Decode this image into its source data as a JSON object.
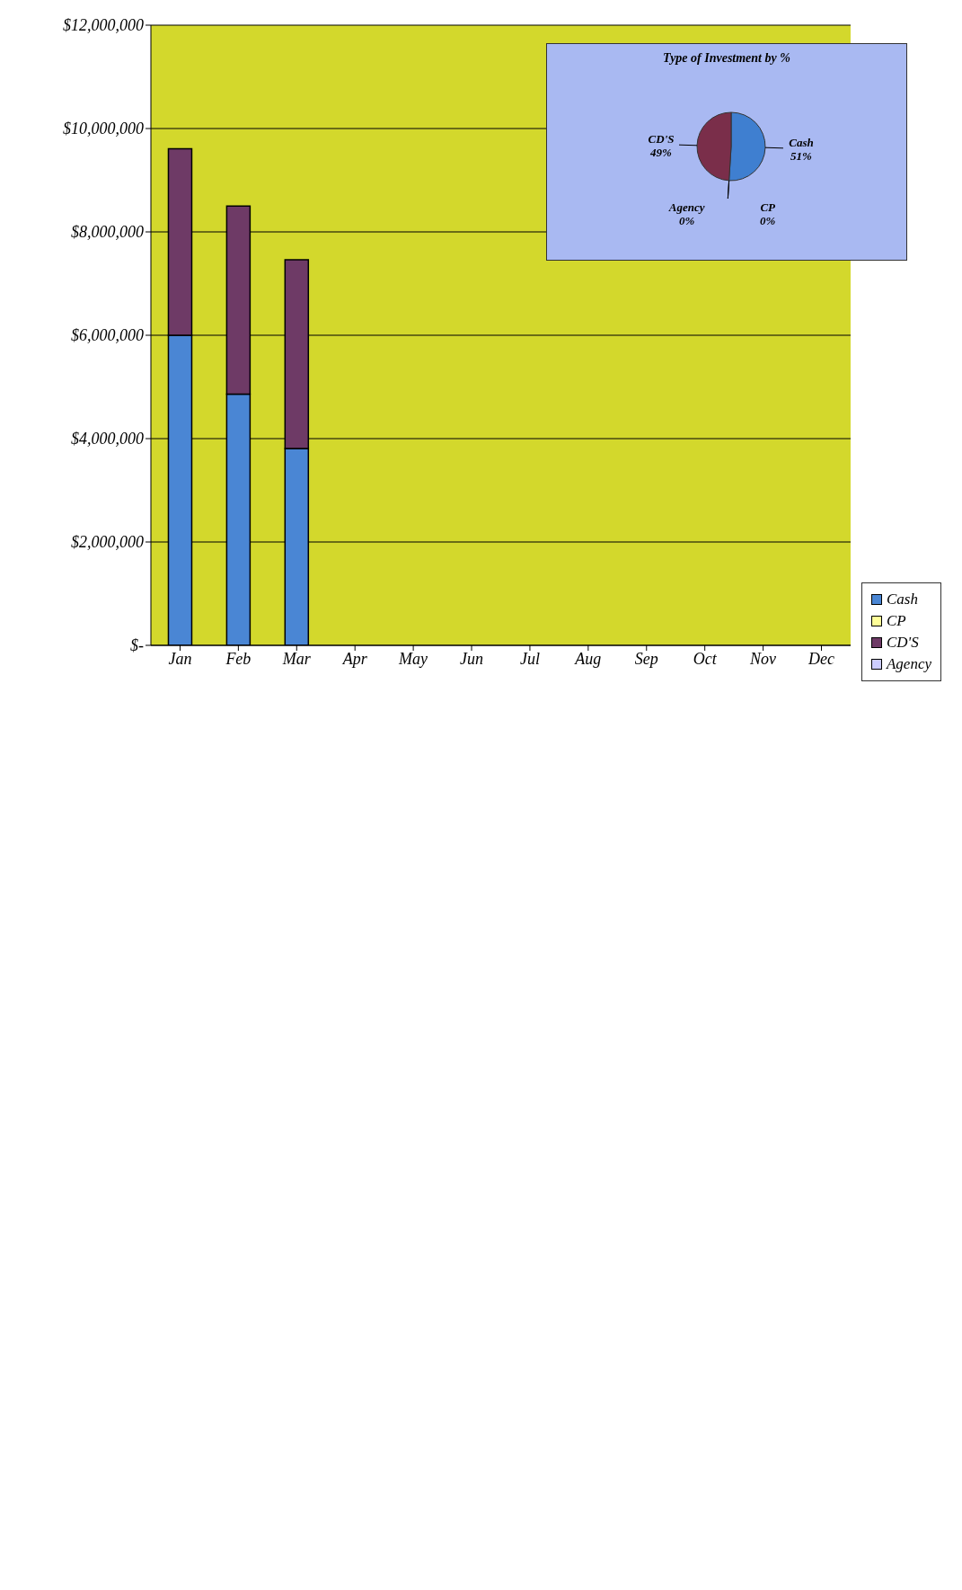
{
  "chart_data": [
    {
      "type": "bar",
      "stacked": true,
      "categories": [
        "Jan",
        "Feb",
        "Mar",
        "Apr",
        "May",
        "Jun",
        "Jul",
        "Aug",
        "Sep",
        "Oct",
        "Nov",
        "Dec"
      ],
      "series": [
        {
          "name": "Cash",
          "color": "#4a86d4",
          "values": [
            6000000,
            4860000,
            3810000,
            null,
            null,
            null,
            null,
            null,
            null,
            null,
            null,
            null
          ]
        },
        {
          "name": "CD'S",
          "color": "#6e3a66",
          "values": [
            3610000,
            3640000,
            3650000,
            null,
            null,
            null,
            null,
            null,
            null,
            null,
            null,
            null
          ]
        },
        {
          "name": "CP",
          "color": "#ffff99",
          "values": [
            0,
            0,
            0,
            null,
            null,
            null,
            null,
            null,
            null,
            null,
            null,
            null
          ]
        },
        {
          "name": "Agency",
          "color": "#ccccff",
          "values": [
            0,
            0,
            0,
            null,
            null,
            null,
            null,
            null,
            null,
            null,
            null,
            null
          ]
        }
      ],
      "ylim": [
        0,
        12000000
      ],
      "yticks": [
        {
          "value": 0,
          "label": "$-"
        },
        {
          "value": 2000000,
          "label": "$2,000,000"
        },
        {
          "value": 4000000,
          "label": "$4,000,000"
        },
        {
          "value": 6000000,
          "label": "$6,000,000"
        },
        {
          "value": 8000000,
          "label": "$8,000,000"
        },
        {
          "value": 10000000,
          "label": "$10,000,000"
        },
        {
          "value": 12000000,
          "label": "$12,000,000"
        }
      ],
      "grid": "y",
      "legend": "right"
    },
    {
      "type": "pie",
      "title": "Type of Investment by %",
      "categories": [
        "Cash",
        "Agency",
        "CP",
        "CD'S"
      ],
      "values": [
        51,
        0,
        0,
        49
      ],
      "colors": [
        "#3f7fd0",
        "#ccccff",
        "#ffff99",
        "#7a2e4a"
      ],
      "value_labels": [
        "51%",
        "0%",
        "0%",
        "49%"
      ]
    }
  ]
}
